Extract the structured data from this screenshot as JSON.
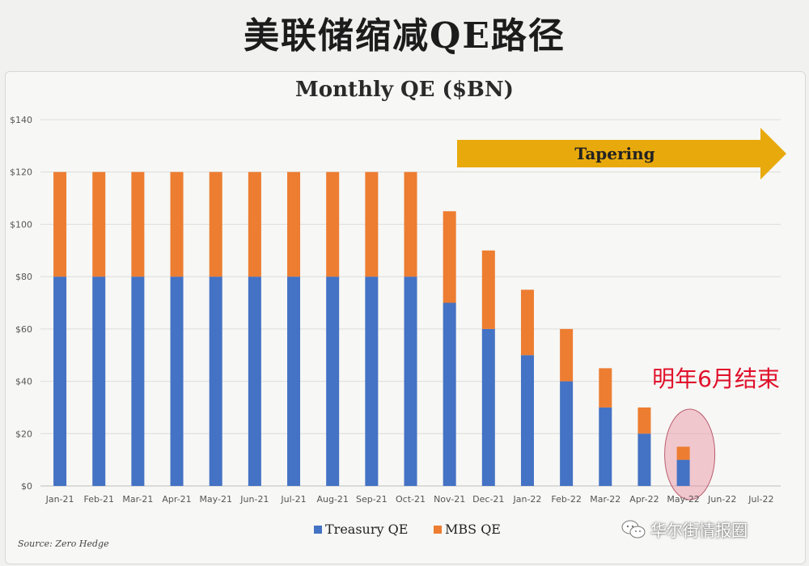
{
  "page": {
    "heading": "美联储缩减QE路径",
    "source": "Source: Zero Hedge",
    "watermark": "华尔街情报圈"
  },
  "chart_data": {
    "type": "bar",
    "stacked": true,
    "title": "Monthly QE ($BN)",
    "categories": [
      "Jan-21",
      "Feb-21",
      "Mar-21",
      "Apr-21",
      "May-21",
      "Jun-21",
      "Jul-21",
      "Aug-21",
      "Sep-21",
      "Oct-21",
      "Nov-21",
      "Dec-21",
      "Jan-22",
      "Feb-22",
      "Mar-22",
      "Apr-22",
      "May-22",
      "Jun-22",
      "Jul-22"
    ],
    "series": [
      {
        "name": "Treasury QE",
        "color": "#4472c4",
        "values": [
          80,
          80,
          80,
          80,
          80,
          80,
          80,
          80,
          80,
          80,
          70,
          60,
          50,
          40,
          30,
          20,
          10,
          0,
          0
        ]
      },
      {
        "name": "MBS QE",
        "color": "#ed7d31",
        "values": [
          40,
          40,
          40,
          40,
          40,
          40,
          40,
          40,
          40,
          40,
          35,
          30,
          25,
          20,
          15,
          10,
          5,
          0,
          0
        ]
      }
    ],
    "ylim": [
      0,
      140
    ],
    "yticks": [
      0,
      20,
      40,
      60,
      80,
      100,
      120,
      140
    ],
    "ytick_labels": [
      "$0",
      "$20",
      "$40",
      "$60",
      "$80",
      "$100",
      "$120",
      "$140"
    ],
    "grid": true,
    "legend": "bottom-center",
    "annotations": {
      "arrow_label": "Tapering",
      "arrow_color": "#e8a90c",
      "note": "明年6月结束",
      "note_color": "#e0102a",
      "highlight_category": "May-22"
    }
  }
}
